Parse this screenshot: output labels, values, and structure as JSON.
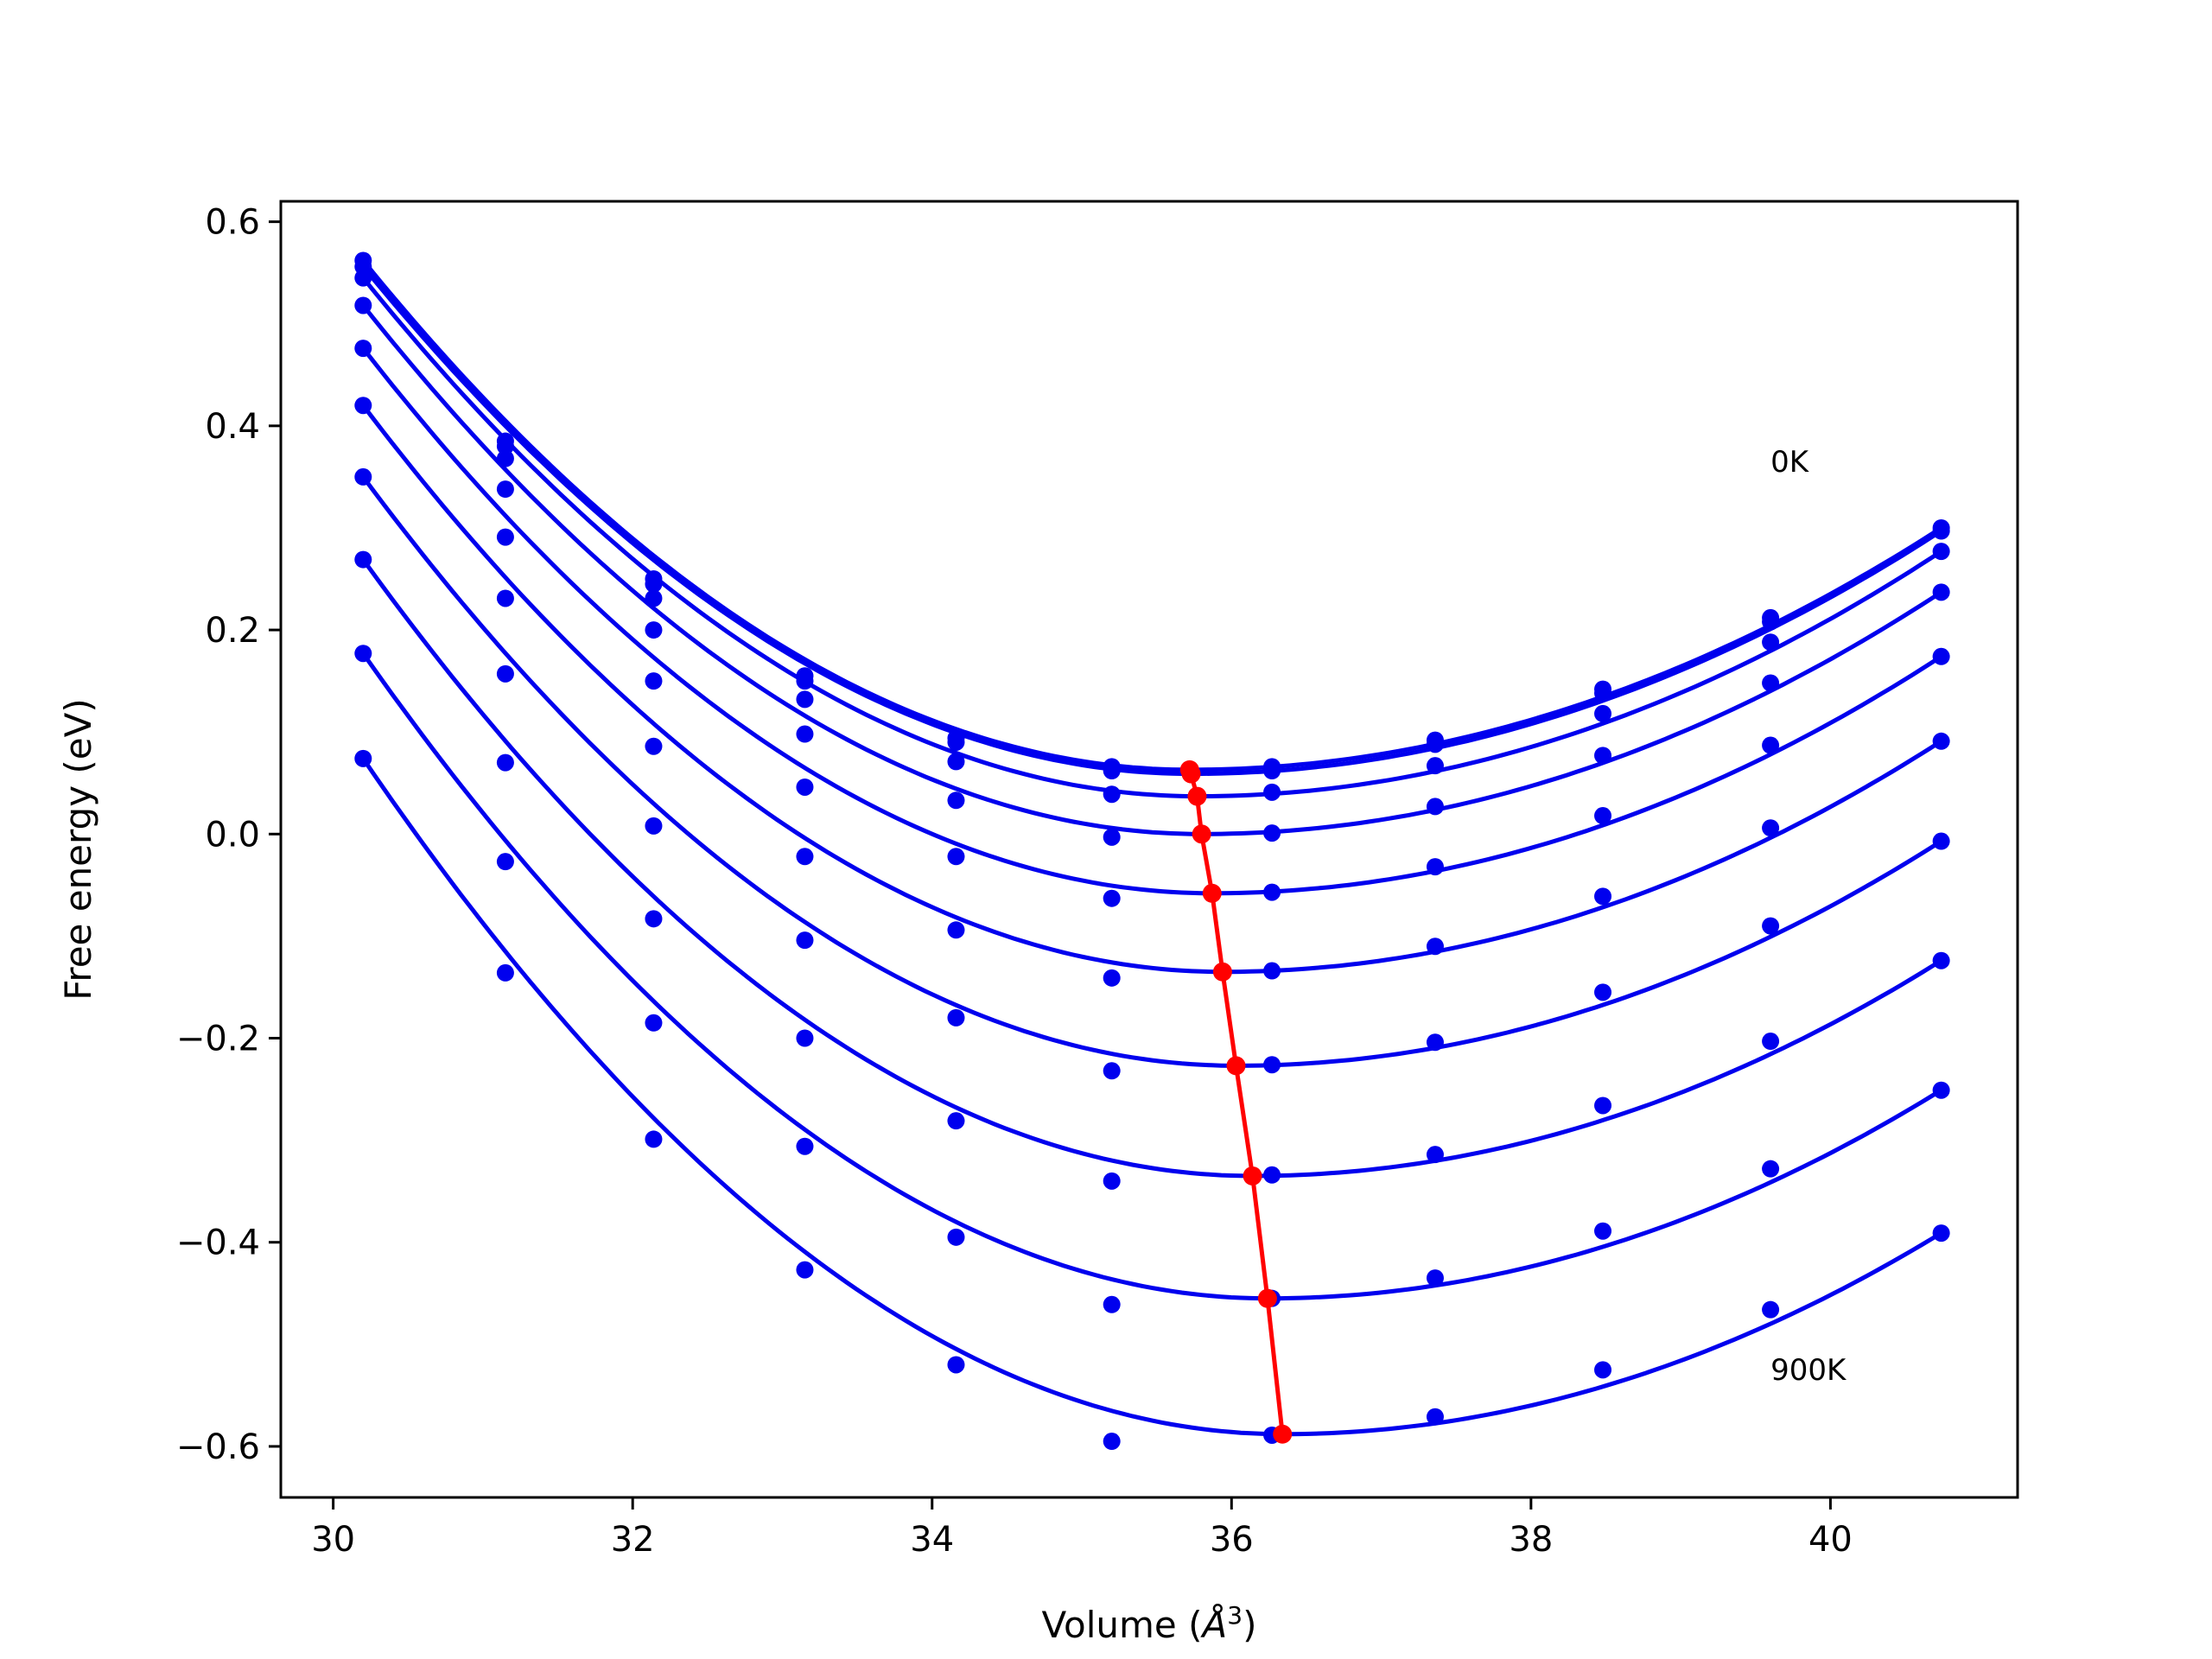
{
  "chart_data": {
    "type": "scatter",
    "xlabel": "Volume (",
    "xlabel_unit": "Å",
    "xlabel_exp": "3",
    "xlabel_close": ")",
    "ylabel": "Free energy (eV)",
    "xlim": [
      29.65,
      41.25
    ],
    "ylim": [
      -0.65,
      0.62
    ],
    "xticks": [
      30,
      32,
      34,
      36,
      38,
      40
    ],
    "xtick_labels": [
      "30",
      "32",
      "34",
      "36",
      "38",
      "40"
    ],
    "yticks": [
      0.6,
      0.4,
      0.2,
      0.0,
      -0.2,
      -0.4,
      -0.6
    ],
    "ytick_labels": [
      "0.6",
      "0.4",
      "0.2",
      "0.0",
      "−0.2",
      "−0.4",
      "−0.6"
    ],
    "grid": false,
    "colors": {
      "points": "#0000ee",
      "fit": "#0000ee",
      "minima": "#ff0000"
    },
    "annotations": [
      {
        "text": "0K",
        "x": 39.6,
        "y": 0.355
      },
      {
        "text": "900K",
        "x": 39.6,
        "y": -0.535
      }
    ],
    "volumes": [
      30.2,
      31.15,
      32.14,
      33.15,
      34.16,
      35.2,
      36.27,
      37.36,
      38.48,
      39.6,
      40.74
    ],
    "series": [
      {
        "values": [
          0.562,
          0.385,
          0.25,
          0.155,
          0.094,
          0.066,
          0.066,
          0.092,
          0.142,
          0.212,
          0.3
        ],
        "min": [
          35.72,
          0.063
        ]
      },
      {
        "values": [
          0.556,
          0.38,
          0.245,
          0.15,
          0.09,
          0.062,
          0.062,
          0.088,
          0.138,
          0.208,
          0.297
        ],
        "min": [
          35.73,
          0.059
        ]
      },
      {
        "values": [
          0.545,
          0.368,
          0.231,
          0.132,
          0.071,
          0.039,
          0.041,
          0.067,
          0.118,
          0.188,
          0.277
        ],
        "min": [
          35.77,
          0.037
        ]
      },
      {
        "values": [
          0.518,
          0.338,
          0.2,
          0.098,
          0.033,
          -0.003,
          0.001,
          0.027,
          0.077,
          0.148,
          0.237
        ],
        "min": [
          35.8,
          0.0
        ]
      },
      {
        "values": [
          0.476,
          0.291,
          0.15,
          0.046,
          -0.022,
          -0.063,
          -0.057,
          -0.032,
          0.018,
          0.087,
          0.174
        ],
        "min": [
          35.87,
          -0.058
        ]
      },
      {
        "values": [
          0.42,
          0.231,
          0.086,
          -0.022,
          -0.094,
          -0.141,
          -0.134,
          -0.11,
          -0.061,
          0.006,
          0.091
        ],
        "min": [
          35.94,
          -0.135
        ]
      },
      {
        "values": [
          0.35,
          0.157,
          0.008,
          -0.104,
          -0.18,
          -0.232,
          -0.226,
          -0.204,
          -0.155,
          -0.09,
          -0.007
        ],
        "min": [
          36.03,
          -0.227
        ]
      },
      {
        "values": [
          0.269,
          0.07,
          -0.083,
          -0.2,
          -0.281,
          -0.34,
          -0.334,
          -0.314,
          -0.266,
          -0.203,
          -0.124
        ],
        "min": [
          36.14,
          -0.335
        ]
      },
      {
        "values": [
          0.177,
          -0.027,
          -0.185,
          -0.306,
          -0.395,
          -0.461,
          -0.455,
          -0.435,
          -0.389,
          -0.328,
          -0.251
        ],
        "min": [
          36.24,
          -0.455
        ]
      },
      {
        "values": [
          0.074,
          -0.136,
          -0.299,
          -0.427,
          -0.52,
          -0.595,
          -0.589,
          -0.571,
          -0.525,
          -0.466,
          -0.391
        ],
        "min": [
          36.34,
          -0.588
        ]
      }
    ]
  }
}
